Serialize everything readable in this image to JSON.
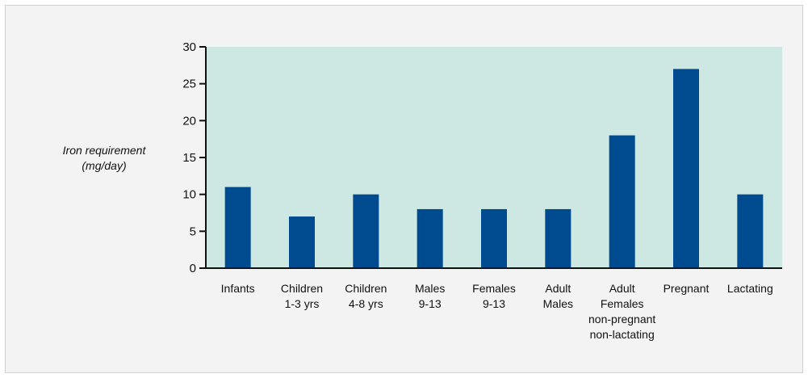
{
  "chart_data": {
    "type": "bar",
    "title": "",
    "ylabel_lines": [
      "Iron requirement",
      "(mg/day)"
    ],
    "xlabel": "",
    "categories": [
      [
        "Infants"
      ],
      [
        "Children",
        "1-3 yrs"
      ],
      [
        "Children",
        "4-8 yrs"
      ],
      [
        "Males",
        "9-13"
      ],
      [
        "Females",
        "9-13"
      ],
      [
        "Adult",
        "Males"
      ],
      [
        "Adult",
        "Females",
        "non-pregnant",
        "non-lactating"
      ],
      [
        "Pregnant"
      ],
      [
        "Lactating"
      ]
    ],
    "values": [
      11,
      7,
      10,
      8,
      8,
      8,
      18,
      27,
      10
    ],
    "ylim": [
      0,
      30
    ],
    "yticks": [
      0,
      5,
      10,
      15,
      20,
      25,
      30
    ],
    "grid": false,
    "colors": {
      "bar": "#004a8f",
      "plot_background": "#cde8e2",
      "axis": "#111111"
    }
  }
}
